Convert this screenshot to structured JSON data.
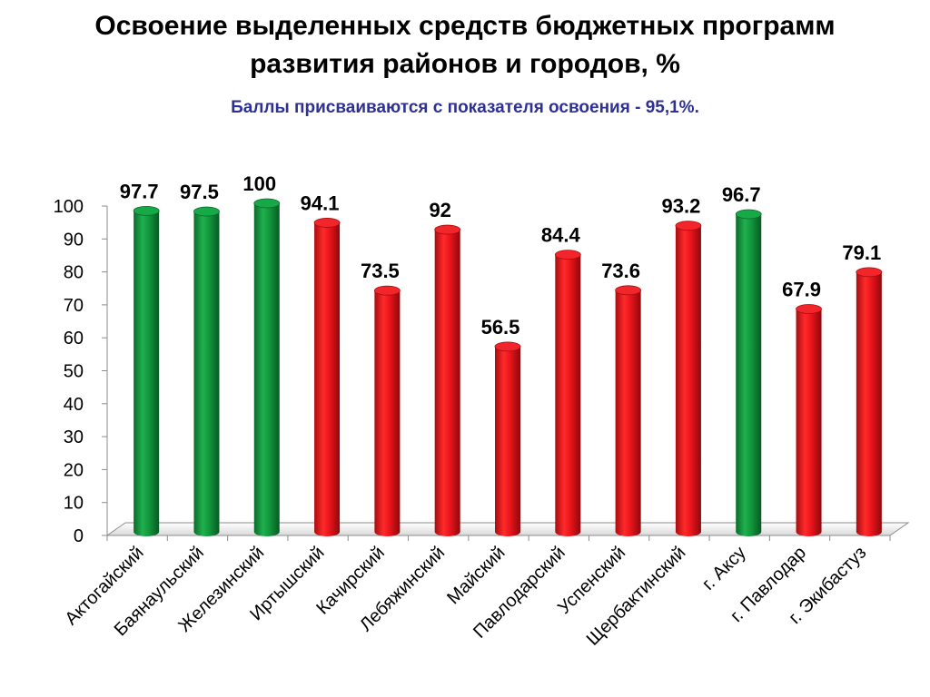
{
  "title_line1": "Освоение выделенных средств бюджетных программ",
  "title_line2": "развития районов и городов, %",
  "subtitle": "Баллы присваиваются с показателя освоения - 95,1%.",
  "colors": {
    "green": "#0f9a3e",
    "red": "#e8141b",
    "subtitle": "#2e3192"
  },
  "chart_data": {
    "type": "bar",
    "categories": [
      "Актогайский",
      "Баянаульский",
      "Железинский",
      "Иртышский",
      "Качирский",
      "Лебяжинский",
      "Майский",
      "Павлодарский",
      "Успенский",
      "Щербактинский",
      "г. Аксу",
      "г. Павлодар",
      "г. Экибастуз"
    ],
    "values": [
      97.7,
      97.5,
      100,
      94.1,
      73.5,
      92,
      56.5,
      84.4,
      73.6,
      93.2,
      96.7,
      67.9,
      79.1
    ],
    "value_labels": [
      "97.7",
      "97.5",
      "100",
      "94.1",
      "73.5",
      "92",
      "56.5",
      "84.4",
      "73.6",
      "93.2",
      "96.7",
      "67.9",
      "79.1"
    ],
    "bar_colors": [
      "green",
      "green",
      "green",
      "red",
      "red",
      "red",
      "red",
      "red",
      "red",
      "red",
      "green",
      "red",
      "red"
    ],
    "ylim": [
      0,
      100
    ],
    "yticks": [
      "0",
      "10",
      "20",
      "30",
      "40",
      "50",
      "60",
      "70",
      "80",
      "90",
      "100"
    ],
    "grid": false,
    "style": "3d-cylinder"
  }
}
